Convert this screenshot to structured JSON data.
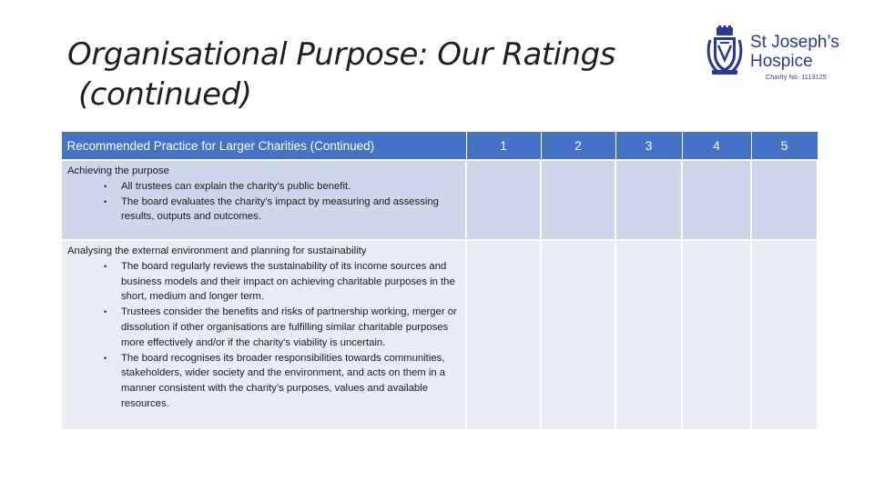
{
  "page": {
    "title_line1": "Organisational Purpose: Our Ratings",
    "title_line2": "(continued)"
  },
  "logo": {
    "name_line1": "St Joseph’s",
    "name_line2": "Hospice",
    "charity_no": "Charity No. 1113125",
    "brand_color": "#2b3990",
    "icon": "crest-icon"
  },
  "table": {
    "header_color": "#4472c4",
    "headers": [
      "Recommended Practice for Larger Charities (Continued)",
      "1",
      "2",
      "3",
      "4",
      "5"
    ],
    "rows": [
      {
        "heading": "Achieving the purpose",
        "bullets": [
          "All trustees can explain the charity’s public benefit.",
          "The board evaluates the charity’s impact by measuring and assessing results, outputs and outcomes."
        ],
        "ratings": [
          "",
          "",
          "",
          "",
          ""
        ]
      },
      {
        "heading": "Analysing the external environment and planning for sustainability",
        "bullets": [
          "The board regularly reviews the sustainability of its income sources and business models and their impact on achieving charitable purposes in the short, medium and longer term.",
          "Trustees consider the benefits and risks of partnership working, merger or dissolution if other organisations are fulfilling similar charitable purposes more effectively and/or if the charity’s viability is uncertain.",
          "The board recognises its broader responsibilities towards communities, stakeholders, wider society and the environment, and acts on them in a manner consistent with the charity’s purposes, values and available resources."
        ],
        "ratings": [
          "",
          "",
          "",
          "",
          ""
        ]
      }
    ]
  }
}
